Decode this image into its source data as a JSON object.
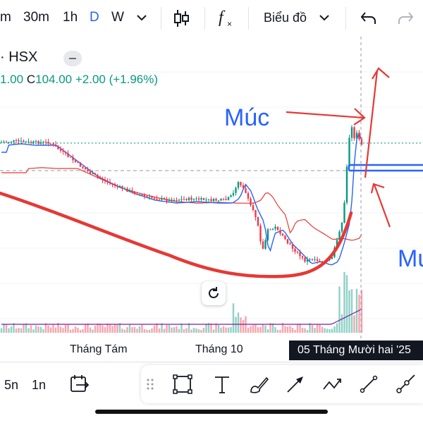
{
  "toolbar": {
    "interval_m": "m",
    "interval_30m": "30m",
    "interval_1h": "1h",
    "interval_d": "D",
    "interval_w": "W",
    "chart_type_label": "Biểu đồ"
  },
  "symbol": {
    "name": "· HSX",
    "ohlc_prefix": "1.00",
    "close_label": "C",
    "close_value": "104.00",
    "change": "+2.00 (+1.96%)"
  },
  "annotations": {
    "label_1": "Múc",
    "label_2": "Mu"
  },
  "axis": {
    "month_1": "Tháng Tám",
    "month_2": "Tháng 10",
    "crosshair_date": "05 Tháng Mười hai '25"
  },
  "bottom": {
    "range_5n": "5n",
    "range_1n": "1n"
  },
  "colors": {
    "up": "#089981",
    "down": "#f23645",
    "accent": "#2962ff",
    "annotation_red": "#e53935",
    "ma_blue": "#2962ff",
    "ma_red": "#e53935",
    "volume_ma": "#7b1fa2"
  },
  "icons": [
    "chevron-down-icon",
    "candles-icon",
    "fx-icon",
    "undo-icon",
    "redo-icon",
    "refresh-icon",
    "calendar-go-icon",
    "drag-handle-icon",
    "rectangle-icon",
    "text-icon",
    "brush-icon",
    "arrow-icon",
    "path-icon",
    "trend-line-icon",
    "ray-icon"
  ]
}
